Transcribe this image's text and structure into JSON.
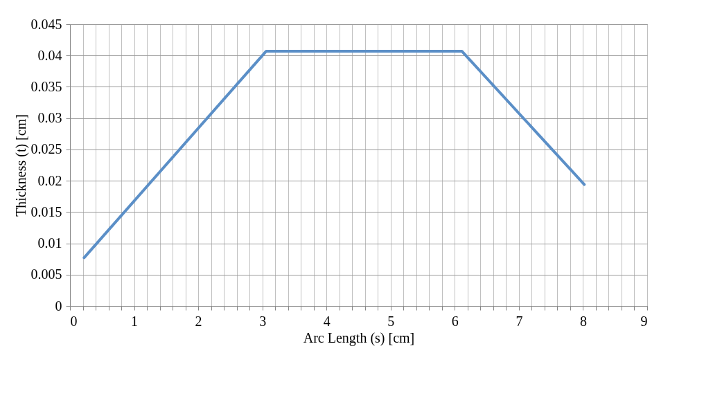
{
  "chart_data": {
    "type": "line",
    "xlabel": "Arc Length (s) [cm]",
    "ylabel": "Thickness (t) [cm]",
    "x": [
      0.22,
      3.06,
      6.11,
      8.02
    ],
    "series": [
      {
        "color": "#5b8fc7",
        "values": [
          0.0077,
          0.0407,
          0.0407,
          0.0194
        ]
      }
    ],
    "xlim": [
      0,
      9
    ],
    "ylim": [
      0,
      0.045
    ],
    "xticks": [
      0,
      {
        "value": 0.2,
        "label": null
      },
      {
        "value": 0.4,
        "label": null
      },
      {
        "value": 0.6,
        "label": null
      },
      {
        "value": 0.8,
        "label": null
      },
      1,
      {
        "value": 1.2,
        "label": null
      },
      {
        "value": 1.4,
        "label": null
      },
      {
        "value": 1.6,
        "label": null
      },
      {
        "value": 1.8,
        "label": null
      },
      2,
      {
        "value": 2.2,
        "label": null
      },
      {
        "value": 2.4,
        "label": null
      },
      {
        "value": 2.6,
        "label": null
      },
      {
        "value": 2.8,
        "label": null
      },
      3,
      {
        "value": 3.2,
        "label": null
      },
      {
        "value": 3.4,
        "label": null
      },
      {
        "value": 3.6,
        "label": null
      },
      {
        "value": 3.8,
        "label": null
      },
      4,
      {
        "value": 4.2,
        "label": null
      },
      {
        "value": 4.4,
        "label": null
      },
      {
        "value": 4.6,
        "label": null
      },
      {
        "value": 4.8,
        "label": null
      },
      5,
      {
        "value": 5.2,
        "label": null
      },
      {
        "value": 5.4,
        "label": null
      },
      {
        "value": 5.6,
        "label": null
      },
      {
        "value": 5.8,
        "label": null
      },
      6,
      {
        "value": 6.2,
        "label": null
      },
      {
        "value": 6.4,
        "label": null
      },
      {
        "value": 6.6,
        "label": null
      },
      {
        "value": 6.8,
        "label": null
      },
      7,
      {
        "value": 7.2,
        "label": null
      },
      {
        "value": 7.4,
        "label": null
      },
      {
        "value": 7.6,
        "label": null
      },
      {
        "value": 7.8,
        "label": null
      },
      8,
      {
        "value": 8.2,
        "label": null
      },
      {
        "value": 8.4,
        "label": null
      },
      {
        "value": 8.6,
        "label": null
      },
      {
        "value": 8.8,
        "label": null
      },
      9
    ],
    "yticks": [
      0,
      0.005,
      0.01,
      0.015,
      0.02,
      0.025,
      0.03,
      0.035,
      0.04,
      0.045
    ],
    "grid": true,
    "marker": "none",
    "line_style": "solid"
  }
}
